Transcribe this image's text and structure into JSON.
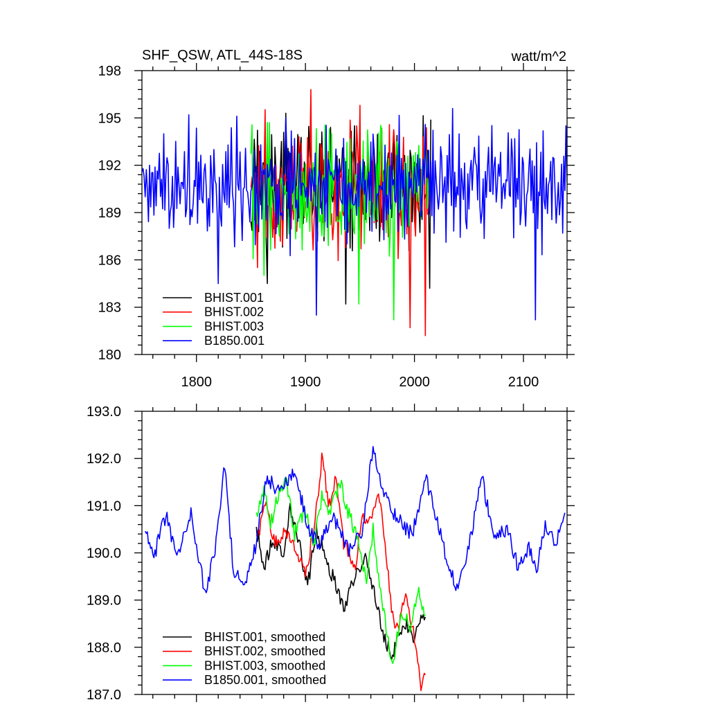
{
  "chart_data": [
    {
      "type": "line",
      "title": "SHF_QSW, ATL_44S-18S",
      "units": "watt/m^2",
      "xlim": [
        1750,
        2140
      ],
      "ylim": [
        180,
        198
      ],
      "x_ticks": [
        1800,
        1900,
        2000,
        2100
      ],
      "x_tick_labels": [
        "1800",
        "1900",
        "2000",
        "2100"
      ],
      "y_ticks": [
        180,
        183,
        186,
        189,
        192,
        195,
        198
      ],
      "y_tick_labels": [
        "180",
        "183",
        "186",
        "189",
        "192",
        "195",
        "198"
      ],
      "legend_position": "bottom-left",
      "series": [
        {
          "name": "BHIST.001",
          "color": "#000000",
          "x_start": 1850,
          "x_end": 2015,
          "mean": 190.6,
          "spread": 2.2,
          "peaks": [
            [
              1882,
              195.3
            ],
            [
              1865,
              184.5
            ],
            [
              1937,
              183.2
            ],
            [
              1945,
              194.5
            ],
            [
              2014,
              184.2
            ]
          ]
        },
        {
          "name": "BHIST.002",
          "color": "#ff0000",
          "x_start": 1850,
          "x_end": 2015,
          "mean": 190.4,
          "spread": 2.3,
          "peaks": [
            [
              1905,
              196.8
            ],
            [
              1950,
              195.8
            ],
            [
              1996,
              181.7
            ],
            [
              2010,
              181.2
            ],
            [
              2008,
              193.8
            ]
          ]
        },
        {
          "name": "BHIST.003",
          "color": "#00ff00",
          "x_start": 1850,
          "x_end": 2015,
          "mean": 190.2,
          "spread": 2.2,
          "peaks": [
            [
              1867,
              194.7
            ],
            [
              1949,
              183.2
            ],
            [
              1981,
              182.2
            ],
            [
              1922,
              194.3
            ]
          ]
        },
        {
          "name": "B1850.001",
          "color": "#0000ff",
          "x_start": 1750,
          "x_end": 2140,
          "mean": 190.6,
          "spread": 1.9,
          "peaks": [
            [
              1793,
              195.2
            ],
            [
              1820,
              184.5
            ],
            [
              1910,
              182.5
            ],
            [
              2035,
              195.6
            ],
            [
              2111,
              182.2
            ],
            [
              2139,
              194.5
            ],
            [
              1882,
              195.0
            ]
          ]
        }
      ]
    },
    {
      "type": "line",
      "xlim": [
        1750,
        2140
      ],
      "ylim": [
        187,
        193
      ],
      "x_ticks": [
        1800,
        1900,
        2000,
        2100
      ],
      "y_ticks": [
        187,
        188,
        189,
        190,
        191,
        192,
        193
      ],
      "y_tick_labels": [
        "187.0",
        "188.0",
        "189.0",
        "190.0",
        "191.0",
        "192.0",
        "193.0"
      ],
      "legend_position": "bottom-left",
      "series": [
        {
          "name": "BHIST.001, smoothed",
          "color": "#000000",
          "x_start": 1855,
          "x_end": 2010,
          "knots": [
            [
              1855,
              190.5
            ],
            [
              1862,
              189.7
            ],
            [
              1870,
              190.3
            ],
            [
              1880,
              190.0
            ],
            [
              1886,
              191.0
            ],
            [
              1895,
              190.1
            ],
            [
              1902,
              189.3
            ],
            [
              1910,
              190.5
            ],
            [
              1920,
              189.8
            ],
            [
              1930,
              189.2
            ],
            [
              1936,
              188.8
            ],
            [
              1945,
              189.5
            ],
            [
              1955,
              189.9
            ],
            [
              1963,
              189.2
            ],
            [
              1972,
              188.2
            ],
            [
              1980,
              187.8
            ],
            [
              1986,
              188.3
            ],
            [
              1993,
              188.5
            ],
            [
              2000,
              188.1
            ],
            [
              2005,
              188.6
            ],
            [
              2010,
              188.7
            ]
          ]
        },
        {
          "name": "BHIST.002, smoothed",
          "color": "#ff0000",
          "x_start": 1855,
          "x_end": 2010,
          "knots": [
            [
              1855,
              190.3
            ],
            [
              1864,
              191.0
            ],
            [
              1872,
              190.2
            ],
            [
              1882,
              190.5
            ],
            [
              1892,
              190.0
            ],
            [
              1900,
              189.6
            ],
            [
              1908,
              190.5
            ],
            [
              1915,
              192.0
            ],
            [
              1922,
              191.0
            ],
            [
              1928,
              191.6
            ],
            [
              1935,
              190.2
            ],
            [
              1945,
              189.6
            ],
            [
              1952,
              190.8
            ],
            [
              1960,
              190.6
            ],
            [
              1966,
              191.3
            ],
            [
              1972,
              190.5
            ],
            [
              1979,
              188.8
            ],
            [
              1985,
              188.3
            ],
            [
              1992,
              189.2
            ],
            [
              2000,
              188.2
            ],
            [
              2006,
              187.2
            ],
            [
              2010,
              187.4
            ]
          ]
        },
        {
          "name": "BHIST.003, smoothed",
          "color": "#00ff00",
          "x_start": 1855,
          "x_end": 2010,
          "knots": [
            [
              1855,
              190.8
            ],
            [
              1862,
              191.4
            ],
            [
              1868,
              190.6
            ],
            [
              1875,
              191.2
            ],
            [
              1882,
              191.6
            ],
            [
              1890,
              190.4
            ],
            [
              1900,
              190.9
            ],
            [
              1908,
              190.2
            ],
            [
              1915,
              191.2
            ],
            [
              1922,
              190.8
            ],
            [
              1932,
              191.5
            ],
            [
              1940,
              190.8
            ],
            [
              1948,
              190.3
            ],
            [
              1956,
              189.4
            ],
            [
              1962,
              190.5
            ],
            [
              1968,
              189.3
            ],
            [
              1975,
              188.3
            ],
            [
              1980,
              187.6
            ],
            [
              1988,
              188.8
            ],
            [
              1996,
              188.4
            ],
            [
              2003,
              189.2
            ],
            [
              2010,
              188.6
            ]
          ]
        },
        {
          "name": "B1850.001, smoothed",
          "color": "#0000ff",
          "x_start": 1753,
          "x_end": 2138,
          "knots": [
            [
              1753,
              190.4
            ],
            [
              1762,
              190.0
            ],
            [
              1772,
              190.8
            ],
            [
              1782,
              189.9
            ],
            [
              1795,
              190.9
            ],
            [
              1808,
              189.1
            ],
            [
              1818,
              190.2
            ],
            [
              1826,
              191.9
            ],
            [
              1834,
              189.6
            ],
            [
              1844,
              189.3
            ],
            [
              1854,
              190.1
            ],
            [
              1864,
              191.6
            ],
            [
              1876,
              191.3
            ],
            [
              1890,
              191.7
            ],
            [
              1902,
              190.6
            ],
            [
              1912,
              190.1
            ],
            [
              1925,
              190.8
            ],
            [
              1940,
              190.0
            ],
            [
              1952,
              190.5
            ],
            [
              1962,
              192.2
            ],
            [
              1972,
              191.2
            ],
            [
              1985,
              190.7
            ],
            [
              1998,
              190.4
            ],
            [
              2010,
              191.6
            ],
            [
              2020,
              190.8
            ],
            [
              2030,
              189.8
            ],
            [
              2040,
              189.2
            ],
            [
              2052,
              190.4
            ],
            [
              2062,
              191.6
            ],
            [
              2072,
              190.4
            ],
            [
              2085,
              190.5
            ],
            [
              2095,
              189.7
            ],
            [
              2105,
              190.1
            ],
            [
              2112,
              189.6
            ],
            [
              2120,
              190.6
            ],
            [
              2130,
              190.2
            ],
            [
              2138,
              190.8
            ]
          ]
        }
      ]
    }
  ]
}
